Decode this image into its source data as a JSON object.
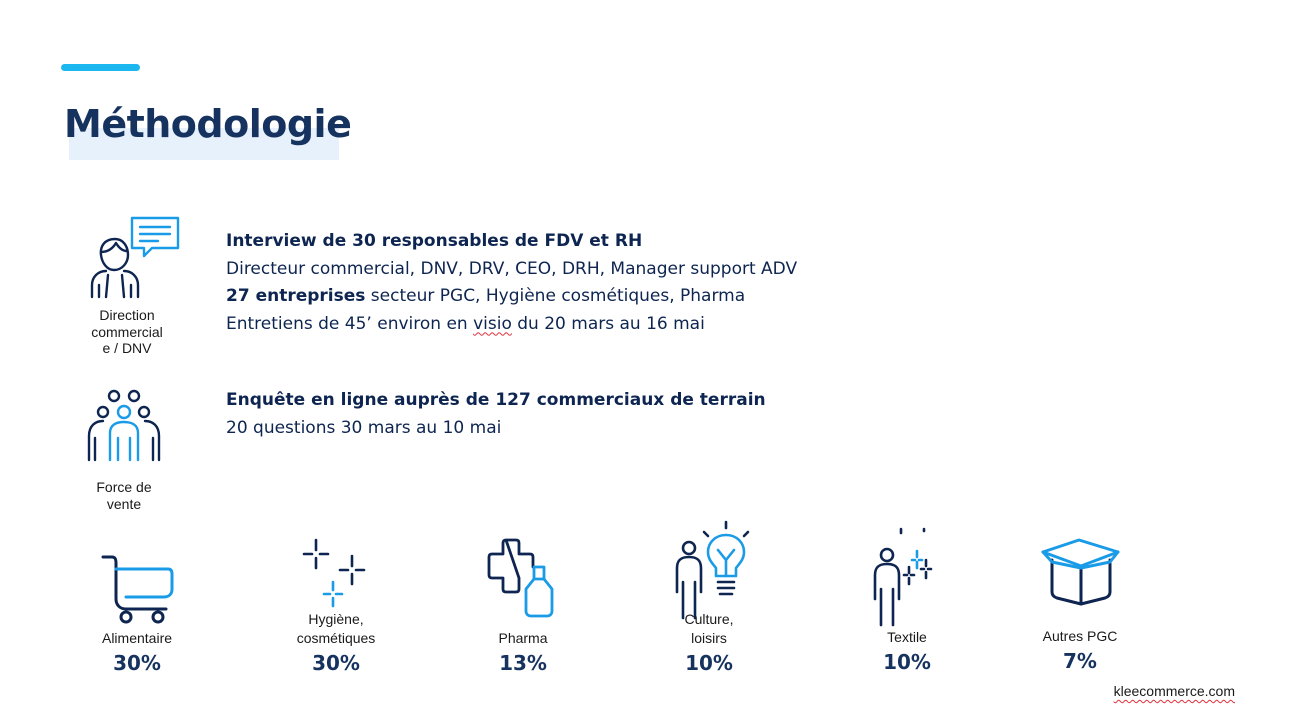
{
  "title": "Méthodologie",
  "colors": {
    "navy": "#0d2550",
    "accent": "#1cb7ef",
    "icon_blue": "#1a9be8"
  },
  "interviews": {
    "icon": "manager-speech-bubble-icon",
    "caption": [
      "Direction",
      "commercial",
      "e / DNV"
    ],
    "headline": "Interview de 30 responsables de FDV et RH",
    "roles": "Directeur commercial, DNV, DRV, CEO, DRH, Manager support ADV",
    "companies_bold": "27 entreprises",
    "companies_rest": " secteur PGC, Hygiène cosmétiques, Pharma",
    "sessions_before": "Entretiens de 45’ environ en ",
    "sessions_visio": "visio",
    "sessions_after": " du 20 mars  au 16 mai"
  },
  "survey": {
    "icon": "sales-team-icon",
    "caption": [
      "Force de",
      "vente"
    ],
    "headline": "Enquête en ligne auprès de 127 commerciaux de terrain",
    "details": "20 questions 30 mars  au 10 mai"
  },
  "sectors": [
    {
      "icon": "shopping-cart-icon",
      "label_lines": [
        "Alimentaire"
      ],
      "percent": "30%"
    },
    {
      "icon": "sparkles-icon",
      "label_lines": [
        "Hygiène,",
        "cosmétiques"
      ],
      "percent": "30%"
    },
    {
      "icon": "pharma-cross-bottle-icon",
      "label_lines": [
        "Pharma"
      ],
      "percent": "13%"
    },
    {
      "icon": "person-lightbulb-icon",
      "label_lines": [
        "Culture,",
        "loisirs"
      ],
      "percent": "10%"
    },
    {
      "icon": "person-sparkles-icon",
      "label_lines": [
        "Textile"
      ],
      "percent": "10%"
    },
    {
      "icon": "open-box-icon",
      "label_lines": [
        "Autres PGC"
      ],
      "percent": "7%"
    }
  ],
  "footer": "kleecommerce.com"
}
